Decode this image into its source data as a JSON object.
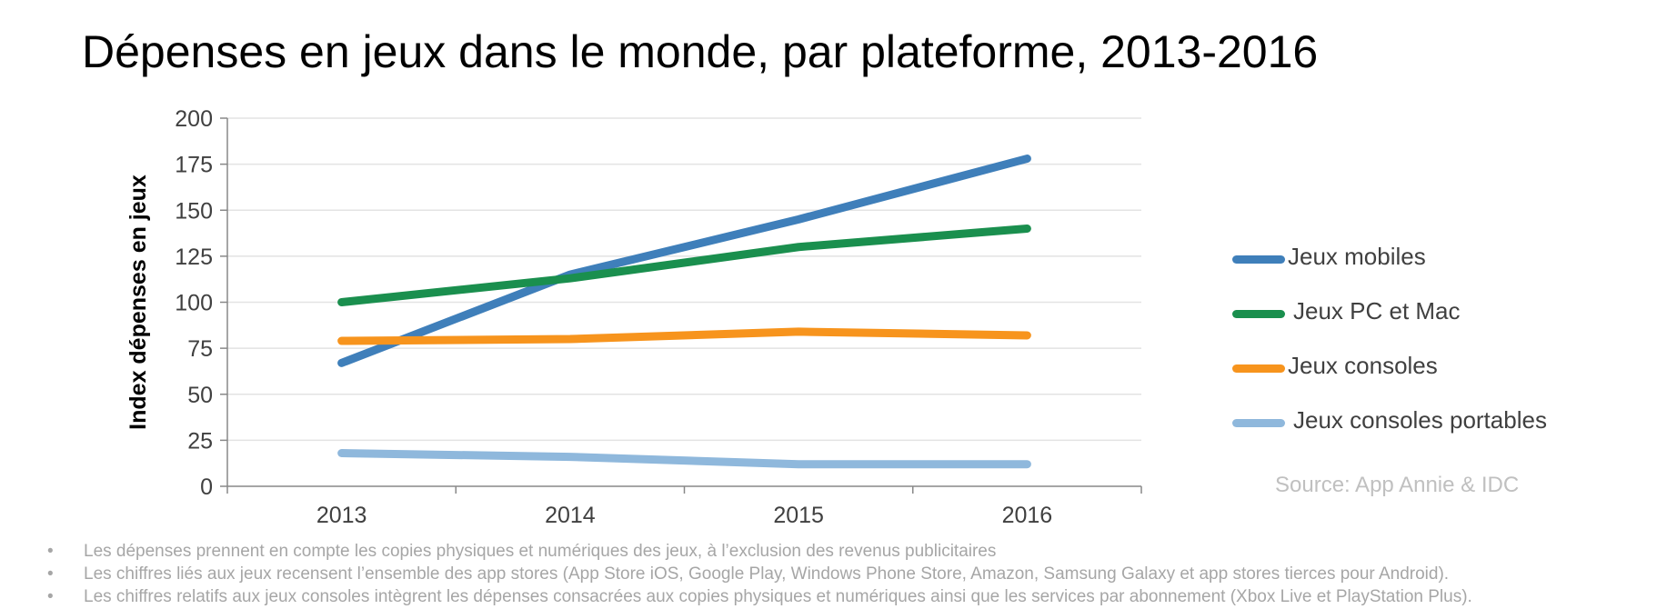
{
  "chart_data": {
    "type": "line",
    "title": "Dépenses en jeux dans le monde, par plateforme, 2013-2016",
    "ylabel": "Index dépenses  en jeux",
    "xlabel": "",
    "categories": [
      "2013",
      "2014",
      "2015",
      "2016"
    ],
    "ylim": [
      0,
      200
    ],
    "yticks": [
      "0",
      "25",
      "50",
      "75",
      "100",
      "125",
      "150",
      "175",
      "200"
    ],
    "grid": true,
    "legend_position": "right",
    "series": [
      {
        "name": "Jeux mobiles",
        "color": "#3f7fba",
        "values": [
          67,
          115,
          145,
          178
        ]
      },
      {
        "name": "Jeux PC et Mac",
        "color": "#1a8f4e",
        "values": [
          100,
          113,
          130,
          140
        ]
      },
      {
        "name": "Jeux consoles",
        "color": "#f7941d",
        "values": [
          79,
          80,
          84,
          82
        ]
      },
      {
        "name": "Jeux consoles portables",
        "color": "#8fb8dc",
        "values": [
          18,
          16,
          12,
          12
        ]
      }
    ]
  },
  "source": "Source: App Annie & IDC",
  "notes": [
    "Les dépenses prennent en compte les copies physiques et numériques des jeux, à l’exclusion des revenus publicitaires",
    "Les chiffres liés aux jeux recensent l’ensemble des app stores (App Store iOS, Google Play, Windows Phone Store, Amazon, Samsung Galaxy et app stores tierces pour Android).",
    "Les chiffres relatifs aux jeux consoles intègrent les dépenses consacrées aux copies physiques et numériques ainsi que les services par abonnement (Xbox Live et PlayStation Plus)."
  ],
  "bullet": "•"
}
